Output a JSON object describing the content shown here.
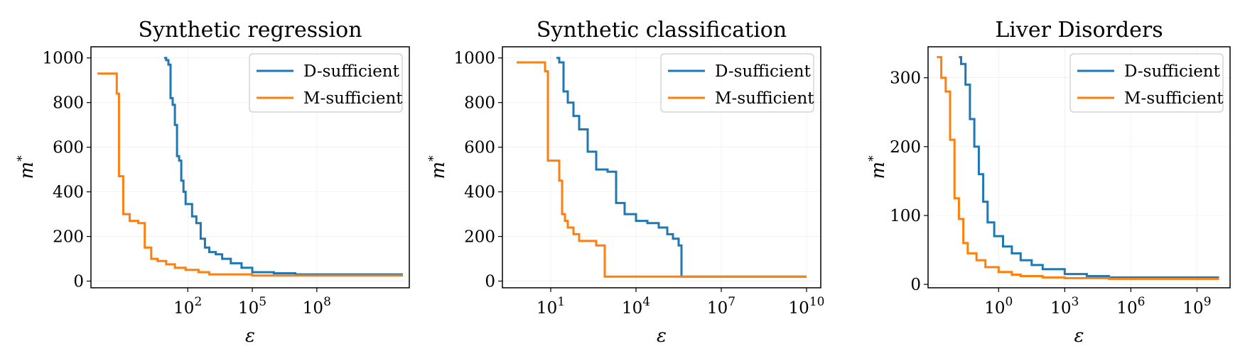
{
  "colors": {
    "d_sufficient": "#1f77b4",
    "m_sufficient": "#ff7f0e"
  },
  "chart_data": [
    {
      "type": "line",
      "title": "Synthetic regression",
      "xlabel": "ε",
      "ylabel_base": "m",
      "ylabel_sup": "*",
      "xscale": "log",
      "xlim_log10": [
        -2.5,
        12.3
      ],
      "ylim": [
        -30,
        1050
      ],
      "yticks": [
        0,
        200,
        400,
        600,
        800,
        1000
      ],
      "ytick_labels": [
        "0",
        "200",
        "400",
        "600",
        "800",
        "1000"
      ],
      "xticks_log10": [
        2,
        5,
        8
      ],
      "xtick_labels": [
        {
          "base": "10",
          "exp": "2"
        },
        {
          "base": "10",
          "exp": "5"
        },
        {
          "base": "10",
          "exp": "8"
        }
      ],
      "grid": true,
      "legend_position": "top-right",
      "series": [
        {
          "name": "D-sufficient",
          "color_key": "d_sufficient",
          "x_log10": [
            0.9,
            1.0,
            1.1,
            1.2,
            1.3,
            1.4,
            1.5,
            1.6,
            1.7,
            1.8,
            1.9,
            2.0,
            2.2,
            2.4,
            2.6,
            2.8,
            3.0,
            3.3,
            3.6,
            4.0,
            4.5,
            5.0,
            6.0,
            7.0,
            8.0,
            9.0,
            10.0,
            11.0,
            12.0
          ],
          "y": [
            1000,
            990,
            970,
            820,
            790,
            700,
            560,
            540,
            450,
            400,
            345,
            345,
            290,
            260,
            190,
            150,
            130,
            120,
            100,
            80,
            60,
            40,
            35,
            30,
            30,
            30,
            30,
            30,
            30
          ]
        },
        {
          "name": "M-sufficient",
          "color_key": "m_sufficient",
          "x_log10": [
            -2.2,
            -1.5,
            -1.3,
            -1.2,
            -1.0,
            -0.7,
            -0.3,
            0.0,
            0.3,
            0.6,
            1.0,
            1.4,
            1.9,
            2.5,
            3.0,
            4.0,
            5.0,
            6.0,
            7.0,
            8.0,
            9.0,
            10.0,
            11.0,
            12.0
          ],
          "y": [
            930,
            930,
            840,
            470,
            300,
            270,
            260,
            150,
            100,
            90,
            75,
            60,
            50,
            40,
            30,
            30,
            25,
            25,
            25,
            25,
            25,
            25,
            25,
            25
          ]
        }
      ]
    },
    {
      "type": "line",
      "title": "Synthetic classification",
      "xlabel": "ε",
      "ylabel_base": "m",
      "ylabel_sup": "*",
      "xscale": "log",
      "xlim_log10": [
        -0.7,
        10.5
      ],
      "ylim": [
        -30,
        1050
      ],
      "yticks": [
        0,
        200,
        400,
        600,
        800,
        1000
      ],
      "ytick_labels": [
        "0",
        "200",
        "400",
        "600",
        "800",
        "1000"
      ],
      "xticks_log10": [
        1,
        4,
        7,
        10
      ],
      "xtick_labels": [
        {
          "base": "10",
          "exp": "1"
        },
        {
          "base": "10",
          "exp": "4"
        },
        {
          "base": "10",
          "exp": "7"
        },
        {
          "base": "10",
          "exp": "10"
        }
      ],
      "grid": true,
      "legend_position": "top-right",
      "series": [
        {
          "name": "D-sufficient",
          "color_key": "d_sufficient",
          "x_log10": [
            1.2,
            1.3,
            1.45,
            1.6,
            1.8,
            2.0,
            2.3,
            2.6,
            3.0,
            3.3,
            3.6,
            4.0,
            4.4,
            4.8,
            5.1,
            5.3,
            5.5,
            5.6,
            5.6,
            7.0,
            8.0,
            9.0,
            10.0
          ],
          "y": [
            1000,
            980,
            850,
            800,
            740,
            680,
            580,
            500,
            490,
            350,
            300,
            270,
            260,
            240,
            210,
            190,
            160,
            120,
            20,
            20,
            20,
            20,
            20
          ]
        },
        {
          "name": "M-sufficient",
          "color_key": "m_sufficient",
          "x_log10": [
            -0.2,
            0.7,
            0.8,
            0.9,
            1.3,
            1.4,
            1.5,
            1.6,
            1.8,
            2.0,
            2.6,
            2.9,
            2.9,
            4.0,
            5.0,
            6.0,
            7.0,
            8.0,
            9.0,
            10.0
          ],
          "y": [
            980,
            980,
            940,
            540,
            450,
            300,
            270,
            240,
            210,
            180,
            160,
            160,
            20,
            20,
            20,
            20,
            20,
            20,
            20,
            20
          ]
        }
      ]
    },
    {
      "type": "line",
      "title": "Liver Disorders",
      "xlabel": "ε",
      "ylabel_base": "m",
      "ylabel_sup": "*",
      "xscale": "log",
      "xlim_log10": [
        -3.2,
        10.5
      ],
      "ylim": [
        -5,
        345
      ],
      "yticks": [
        0,
        100,
        200,
        300
      ],
      "ytick_labels": [
        "0",
        "100",
        "200",
        "300"
      ],
      "xticks_log10": [
        0,
        3,
        6,
        9
      ],
      "xtick_labels": [
        {
          "base": "10",
          "exp": "0"
        },
        {
          "base": "10",
          "exp": "3"
        },
        {
          "base": "10",
          "exp": "6"
        },
        {
          "base": "10",
          "exp": "9"
        }
      ],
      "grid": true,
      "legend_position": "top-right",
      "series": [
        {
          "name": "D-sufficient",
          "color_key": "d_sufficient",
          "x_log10": [
            -1.8,
            -1.7,
            -1.5,
            -1.3,
            -1.1,
            -0.9,
            -0.7,
            -0.5,
            -0.2,
            0.2,
            0.6,
            1.0,
            1.5,
            2.0,
            3.0,
            4.0,
            5.0,
            6.0,
            7.0,
            8.0,
            9.0,
            10.0
          ],
          "y": [
            330,
            320,
            290,
            240,
            200,
            160,
            120,
            90,
            70,
            55,
            45,
            35,
            28,
            22,
            15,
            12,
            10,
            10,
            10,
            10,
            10,
            10
          ]
        },
        {
          "name": "M-sufficient",
          "color_key": "m_sufficient",
          "x_log10": [
            -2.8,
            -2.6,
            -2.4,
            -2.2,
            -2.0,
            -1.8,
            -1.6,
            -1.4,
            -1.0,
            -0.6,
            0.0,
            0.6,
            1.0,
            2.0,
            3.0,
            4.0,
            5.0,
            6.0,
            7.0,
            8.0,
            9.0,
            10.0
          ],
          "y": [
            330,
            300,
            280,
            210,
            125,
            95,
            60,
            45,
            35,
            25,
            18,
            14,
            12,
            10,
            9,
            9,
            8,
            8,
            8,
            8,
            8,
            8
          ]
        }
      ]
    }
  ]
}
